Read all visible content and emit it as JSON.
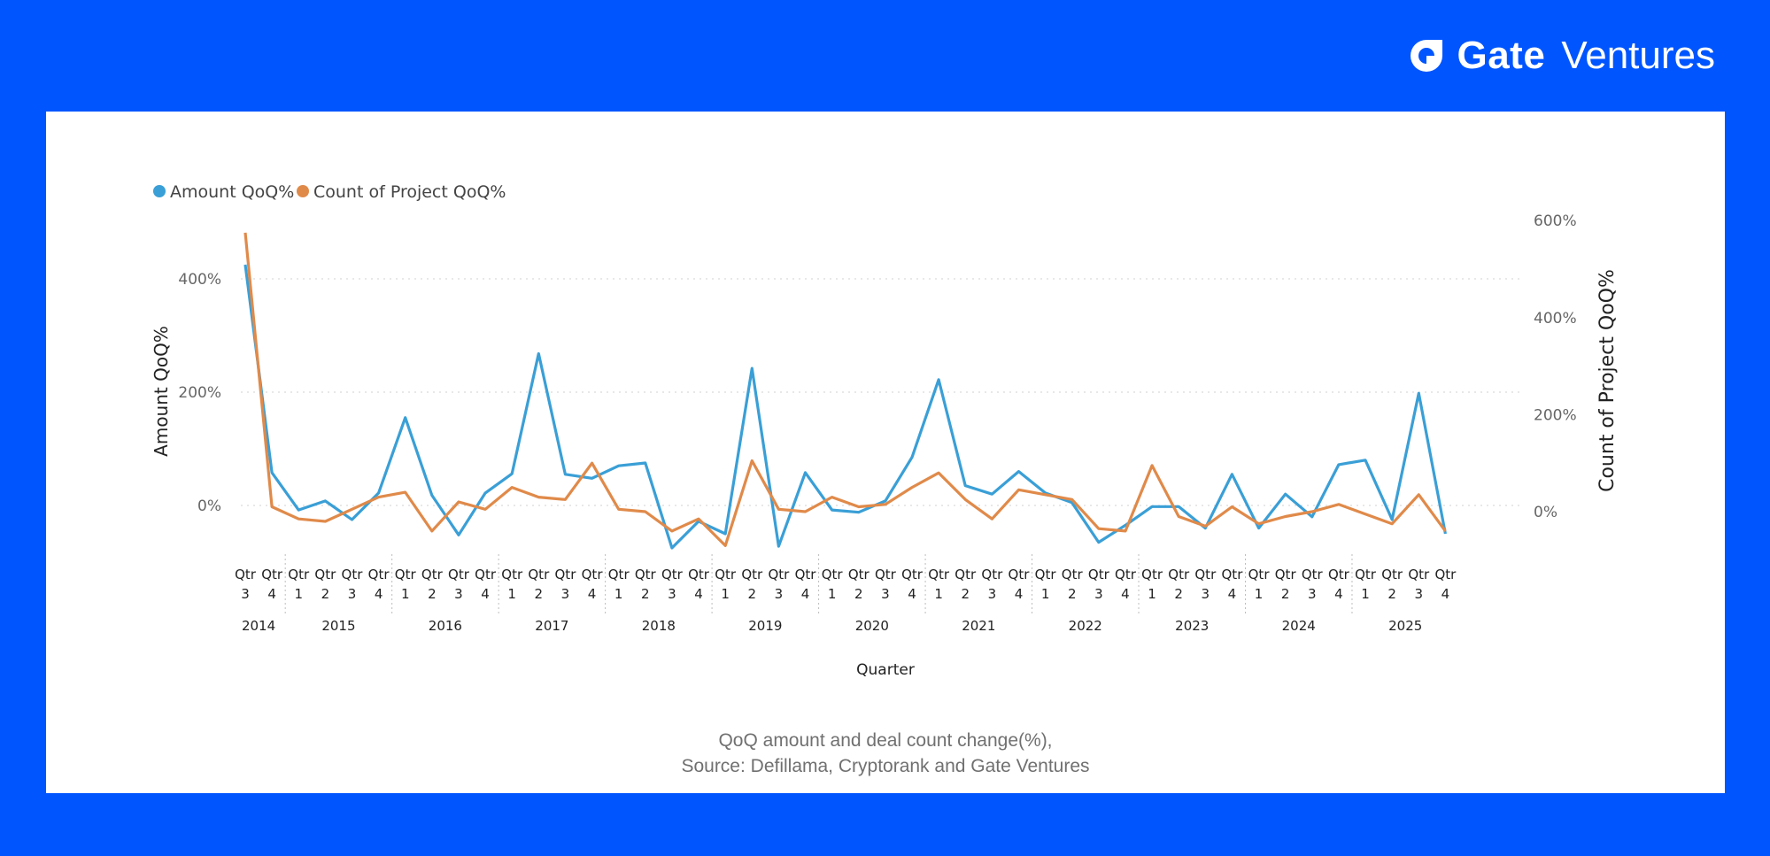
{
  "brand": {
    "name": "Gate",
    "suffix": "Ventures",
    "color": "#ffffff"
  },
  "colors": {
    "background": "#0055ff",
    "panel": "#ffffff",
    "amount": "#3a9fd6",
    "count": "#e08a4a",
    "axis_text": "#666666"
  },
  "caption": {
    "line1": "QoQ amount and deal count change(%),",
    "line2": "Source: Defillama, Cryptorank and Gate Ventures"
  },
  "chart_data": {
    "type": "line",
    "legend": {
      "position": "top-left",
      "entries": [
        "Amount QoQ%",
        "Count of Project QoQ%"
      ]
    },
    "xlabel": "Quarter",
    "ylabel": "Amount QoQ%",
    "ylabel_right": "Count of Project QoQ%",
    "y_ticks": [
      "0%",
      "200%",
      "400%"
    ],
    "y_right_ticks": [
      "0%",
      "200%",
      "400%",
      "600%"
    ],
    "ylim": [
      -90,
      500
    ],
    "ylim_right": [
      -120,
      600
    ],
    "grid": true,
    "x": [
      "2014 Qtr 3",
      "2014 Qtr 4",
      "2015 Qtr 1",
      "2015 Qtr 2",
      "2015 Qtr 3",
      "2015 Qtr 4",
      "2016 Qtr 1",
      "2016 Qtr 2",
      "2016 Qtr 3",
      "2016 Qtr 4",
      "2017 Qtr 1",
      "2017 Qtr 2",
      "2017 Qtr 3",
      "2017 Qtr 4",
      "2018 Qtr 1",
      "2018 Qtr 2",
      "2018 Qtr 3",
      "2018 Qtr 4",
      "2019 Qtr 1",
      "2019 Qtr 2",
      "2019 Qtr 3",
      "2019 Qtr 4",
      "2020 Qtr 1",
      "2020 Qtr 2",
      "2020 Qtr 3",
      "2020 Qtr 4",
      "2021 Qtr 1",
      "2021 Qtr 2",
      "2021 Qtr 3",
      "2021 Qtr 4",
      "2022 Qtr 1",
      "2022 Qtr 2",
      "2022 Qtr 3",
      "2022 Qtr 4",
      "2023 Qtr 1",
      "2023 Qtr 2",
      "2023 Qtr 3",
      "2023 Qtr 4",
      "2024 Qtr 1",
      "2024 Qtr 2",
      "2024 Qtr 3",
      "2024 Qtr 4",
      "2025 Qtr 1",
      "2025 Qtr 2",
      "2025 Qtr 3",
      "2025 Qtr 4"
    ],
    "quarter_tick_top": "Qtr",
    "year_groups": [
      {
        "year": "2014",
        "quarters": [
          "3",
          "4"
        ]
      },
      {
        "year": "2015",
        "quarters": [
          "1",
          "2",
          "3",
          "4"
        ]
      },
      {
        "year": "2016",
        "quarters": [
          "1",
          "2",
          "3",
          "4"
        ]
      },
      {
        "year": "2017",
        "quarters": [
          "1",
          "2",
          "3",
          "4"
        ]
      },
      {
        "year": "2018",
        "quarters": [
          "1",
          "2",
          "3",
          "4"
        ]
      },
      {
        "year": "2019",
        "quarters": [
          "1",
          "2",
          "3",
          "4"
        ]
      },
      {
        "year": "2020",
        "quarters": [
          "1",
          "2",
          "3",
          "4"
        ]
      },
      {
        "year": "2021",
        "quarters": [
          "1",
          "2",
          "3",
          "4"
        ]
      },
      {
        "year": "2022",
        "quarters": [
          "1",
          "2",
          "3",
          "4"
        ]
      },
      {
        "year": "2023",
        "quarters": [
          "1",
          "2",
          "3",
          "4"
        ]
      },
      {
        "year": "2024",
        "quarters": [
          "1",
          "2",
          "3",
          "4"
        ]
      },
      {
        "year": "2025",
        "quarters": [
          "1",
          "2",
          "3",
          "4"
        ]
      }
    ],
    "series": [
      {
        "name": "Amount QoQ%",
        "axis": "left",
        "values": [
          425,
          58,
          -8,
          8,
          -25,
          22,
          155,
          18,
          -52,
          22,
          56,
          268,
          55,
          48,
          70,
          75,
          -75,
          -28,
          -50,
          242,
          -72,
          58,
          -8,
          -12,
          8,
          85,
          222,
          35,
          20,
          60,
          22,
          5,
          -65,
          -35,
          -2,
          -2,
          -40,
          55,
          -40,
          20,
          -20,
          72,
          80,
          -25,
          198,
          -50
        ]
      },
      {
        "name": "Count of Project QoQ%",
        "axis": "right",
        "values": [
          575,
          10,
          -15,
          -20,
          5,
          30,
          40,
          -40,
          20,
          5,
          50,
          30,
          25,
          100,
          5,
          0,
          -40,
          -15,
          -70,
          105,
          5,
          0,
          30,
          10,
          15,
          50,
          80,
          25,
          -15,
          45,
          35,
          25,
          -35,
          -40,
          95,
          -10,
          -30,
          10,
          -25,
          -10,
          0,
          15,
          -5,
          -25,
          35,
          -40
        ]
      }
    ]
  }
}
